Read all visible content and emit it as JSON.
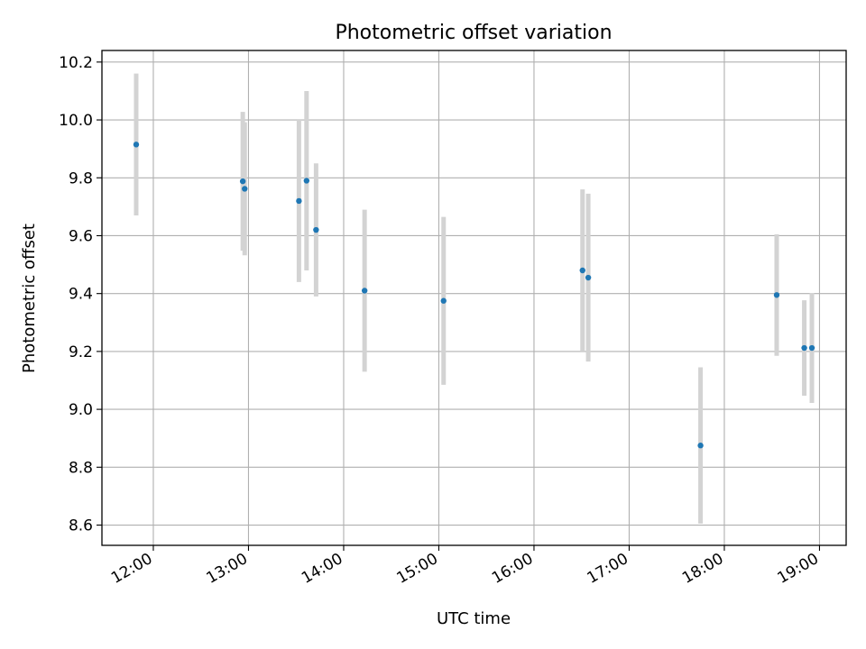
{
  "chart_data": {
    "type": "scatter",
    "title": "Photometric offset variation",
    "xlabel": "UTC time",
    "ylabel": "Photometric offset",
    "x_ticks": [
      "12:00",
      "13:00",
      "14:00",
      "15:00",
      "16:00",
      "17:00",
      "18:00",
      "19:00"
    ],
    "x_tick_hours": [
      12,
      13,
      14,
      15,
      16,
      17,
      18,
      19
    ],
    "y_ticks": [
      "8.6",
      "8.8",
      "9.0",
      "9.2",
      "9.4",
      "9.6",
      "9.8",
      "10.0",
      "10.2"
    ],
    "xlim": [
      "11:28",
      "19:17"
    ],
    "xlim_hours": [
      11.46,
      19.28
    ],
    "ylim": [
      8.53,
      10.24
    ],
    "grid": true,
    "colors": {
      "point": "#1f77b4",
      "errorbar": "#d3d3d3",
      "grid": "#b0b0b0"
    },
    "series": [
      {
        "x": [
          "11:49",
          "12:56",
          "12:57",
          "13:32",
          "13:37",
          "13:43",
          "14:13",
          "15:03",
          "16:30",
          "16:34",
          "17:45",
          "18:33",
          "18:50",
          "18:56"
        ],
        "x_hours": [
          11.82,
          12.94,
          12.96,
          13.53,
          13.61,
          13.71,
          14.22,
          15.05,
          16.51,
          16.57,
          17.75,
          18.55,
          18.84,
          18.92
        ],
        "y": [
          9.915,
          9.788,
          9.762,
          9.72,
          9.79,
          9.62,
          9.41,
          9.375,
          9.48,
          9.455,
          8.875,
          9.395,
          9.212,
          9.212
        ],
        "yerr": [
          0.245,
          0.24,
          0.23,
          0.28,
          0.31,
          0.23,
          0.28,
          0.29,
          0.28,
          0.29,
          0.27,
          0.21,
          0.165,
          0.19
        ]
      }
    ]
  }
}
